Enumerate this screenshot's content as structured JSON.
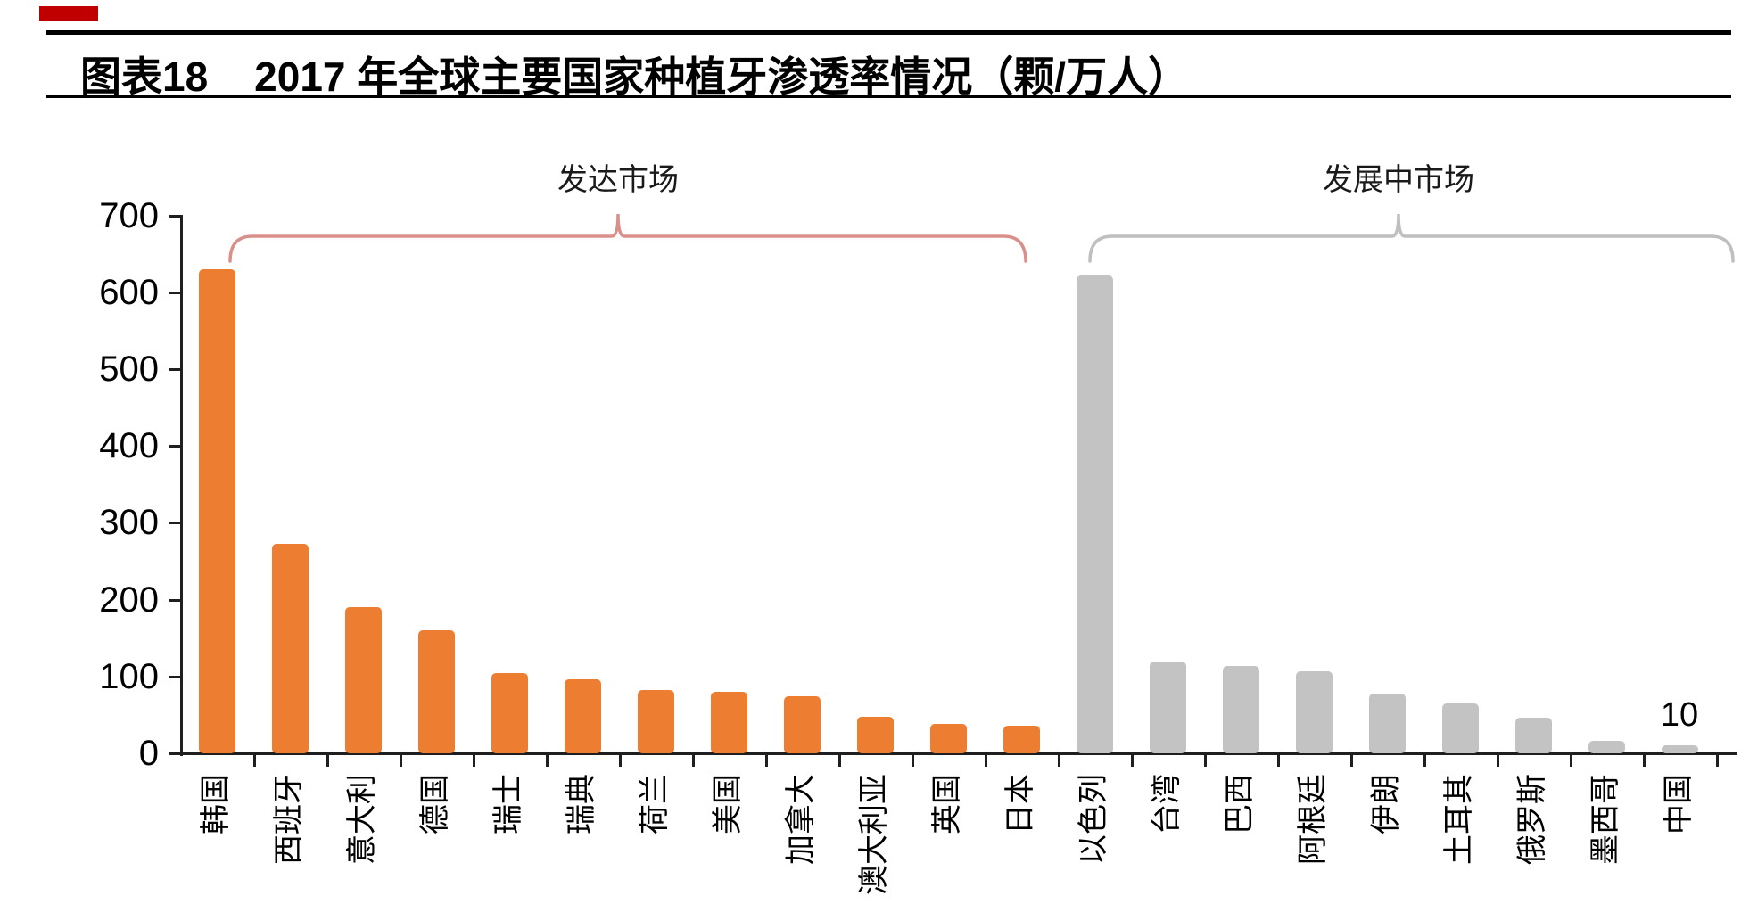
{
  "header": {
    "chart_label": "图表18",
    "title": "2017 年全球主要国家种植牙渗透率情况（颗/万人）"
  },
  "decorations": {
    "red_mark_color": "#C00000",
    "rule_color": "#000000"
  },
  "chart_data": {
    "type": "bar",
    "title": "2017 年全球主要国家种植牙渗透率情况",
    "unit": "颗/万人",
    "ylim": [
      0,
      700
    ],
    "yticks": [
      0,
      100,
      200,
      300,
      400,
      500,
      600,
      700
    ],
    "grid": false,
    "legend_position": "none",
    "groups": [
      {
        "label": "发达市场",
        "bar_color": "#ED7D31",
        "bracket_color": "#D9908B"
      },
      {
        "label": "发展中市场",
        "bar_color": "#C3C3C3",
        "bracket_color": "#BFBFBF"
      }
    ],
    "categories": [
      "韩国",
      "西班牙",
      "意大利",
      "德国",
      "瑞士",
      "瑞典",
      "荷兰",
      "美国",
      "加拿大",
      "澳大利亚",
      "英国",
      "日本",
      "以色列",
      "台湾",
      "巴西",
      "阿根廷",
      "伊朗",
      "土耳其",
      "俄罗斯",
      "墨西哥",
      "中国"
    ],
    "values": [
      630,
      273,
      190,
      160,
      104,
      96,
      82,
      80,
      74,
      48,
      38,
      36,
      622,
      120,
      114,
      107,
      78,
      65,
      46,
      16,
      10
    ],
    "group_index": [
      0,
      0,
      0,
      0,
      0,
      0,
      0,
      0,
      0,
      0,
      0,
      0,
      1,
      1,
      1,
      1,
      1,
      1,
      1,
      1,
      1
    ],
    "annotations": [
      {
        "category": "中国",
        "text": "10"
      }
    ]
  }
}
